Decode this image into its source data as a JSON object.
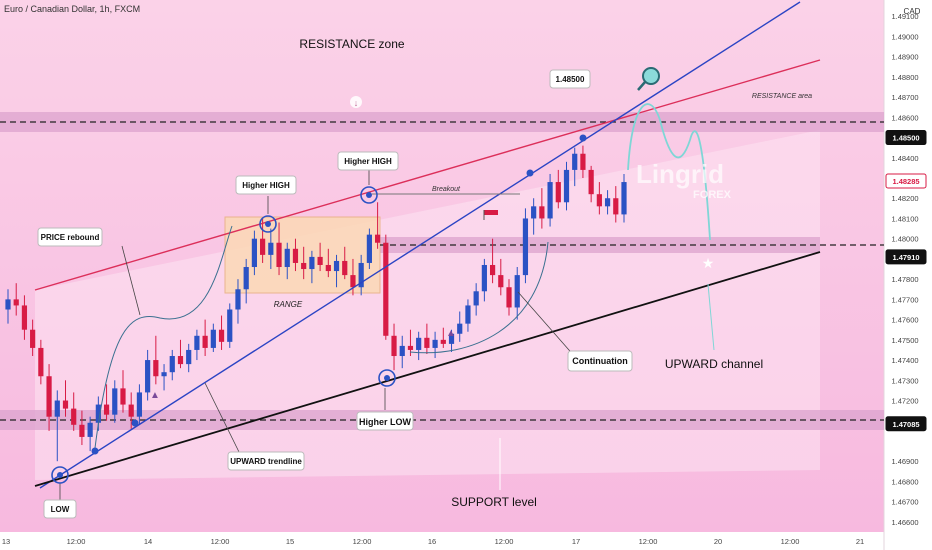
{
  "header": {
    "title": "Euro / Canadian Dollar, 1h, FXCM",
    "currency": "CAD"
  },
  "watermark": {
    "brand": "Lingrid",
    "sub": "FOREX"
  },
  "colors": {
    "background": "#f9c8e6",
    "up": "#2b52c4",
    "down": "#d81b45",
    "trendline": "#2b44c4",
    "resistance_line": "#dc2f5a",
    "support_line": "#111111",
    "band": "#dca3cd",
    "projection": "#7fd6d6"
  },
  "annotations": {
    "resistance_zone": "RESISTANCE zone",
    "resistance_area": "RESISTANCE area",
    "price_rebound": "PRICE rebound",
    "higher_high_1": "Higher HIGH",
    "higher_high_2": "Higher HIGH",
    "breakout": "Breakout",
    "range": "RANGE",
    "higher_low": "Higher LOW",
    "low": "LOW",
    "upward_trendline": "UPWARD trendline",
    "continuation": "Continuation",
    "upward_channel": "UPWARD channel",
    "support_level": "SUPPORT level",
    "target": "1.48500"
  },
  "chart_data": {
    "type": "candlestick",
    "title": "Euro / Canadian Dollar, 1h, FXCM",
    "y_axis": {
      "ticks": [
        "1.49100",
        "1.49000",
        "1.48900",
        "1.48800",
        "1.48700",
        "1.48600",
        "1.48400",
        "1.48200",
        "1.48100",
        "1.48000",
        "1.47800",
        "1.47700",
        "1.47600",
        "1.47500",
        "1.47400",
        "1.47300",
        "1.47200",
        "1.46900",
        "1.46800",
        "1.46700",
        "1.46600"
      ],
      "highlighted": [
        {
          "value": "1.48500",
          "style": "dark"
        },
        {
          "value": "1.48285",
          "style": "red"
        },
        {
          "value": "1.47910",
          "style": "dark"
        },
        {
          "value": "1.47085",
          "style": "dark"
        }
      ],
      "range": [
        1.4655,
        1.4918
      ]
    },
    "x_axis": {
      "ticks": [
        "13",
        "12:00",
        "14",
        "12:00",
        "15",
        "12:00",
        "16",
        "12:00",
        "17",
        "12:00",
        "20",
        "12:00",
        "21"
      ]
    },
    "levels": {
      "resistance": 1.485,
      "mid": 1.4791,
      "support": 1.47085,
      "current": 1.48285
    },
    "candles": [
      [
        1.4765,
        1.4775,
        1.4758,
        1.477
      ],
      [
        1.477,
        1.4778,
        1.4762,
        1.4767
      ],
      [
        1.4767,
        1.4772,
        1.475,
        1.4755
      ],
      [
        1.4755,
        1.476,
        1.4742,
        1.4746
      ],
      [
        1.4746,
        1.475,
        1.4728,
        1.4732
      ],
      [
        1.4732,
        1.4738,
        1.4705,
        1.4712
      ],
      [
        1.4712,
        1.4725,
        1.469,
        1.472
      ],
      [
        1.472,
        1.473,
        1.4712,
        1.4716
      ],
      [
        1.4716,
        1.4724,
        1.4705,
        1.4708
      ],
      [
        1.4708,
        1.4715,
        1.4698,
        1.4702
      ],
      [
        1.4702,
        1.4712,
        1.4695,
        1.4709
      ],
      [
        1.4709,
        1.4722,
        1.4705,
        1.4718
      ],
      [
        1.4718,
        1.4728,
        1.471,
        1.4713
      ],
      [
        1.4713,
        1.473,
        1.4709,
        1.4726
      ],
      [
        1.4726,
        1.4735,
        1.4714,
        1.4718
      ],
      [
        1.4718,
        1.4724,
        1.4706,
        1.4712
      ],
      [
        1.4712,
        1.4728,
        1.4708,
        1.4724
      ],
      [
        1.4724,
        1.4745,
        1.472,
        1.474
      ],
      [
        1.474,
        1.4752,
        1.4728,
        1.4732
      ],
      [
        1.4732,
        1.4738,
        1.4725,
        1.4734
      ],
      [
        1.4734,
        1.4745,
        1.473,
        1.4742
      ],
      [
        1.4742,
        1.475,
        1.4736,
        1.4738
      ],
      [
        1.4738,
        1.4748,
        1.4734,
        1.4745
      ],
      [
        1.4745,
        1.4755,
        1.474,
        1.4752
      ],
      [
        1.4752,
        1.476,
        1.4742,
        1.4746
      ],
      [
        1.4746,
        1.4758,
        1.4744,
        1.4755
      ],
      [
        1.4755,
        1.4762,
        1.4745,
        1.4749
      ],
      [
        1.4749,
        1.4768,
        1.4746,
        1.4765
      ],
      [
        1.4765,
        1.478,
        1.4758,
        1.4775
      ],
      [
        1.4775,
        1.479,
        1.4768,
        1.4786
      ],
      [
        1.4786,
        1.4804,
        1.4782,
        1.48
      ],
      [
        1.48,
        1.481,
        1.4788,
        1.4792
      ],
      [
        1.4792,
        1.4805,
        1.4785,
        1.4798
      ],
      [
        1.4798,
        1.4808,
        1.4782,
        1.4786
      ],
      [
        1.4786,
        1.4798,
        1.478,
        1.4795
      ],
      [
        1.4795,
        1.48,
        1.4784,
        1.4788
      ],
      [
        1.4788,
        1.4796,
        1.478,
        1.4785
      ],
      [
        1.4785,
        1.4794,
        1.4778,
        1.4791
      ],
      [
        1.4791,
        1.4798,
        1.4784,
        1.4787
      ],
      [
        1.4787,
        1.4795,
        1.4781,
        1.4784
      ],
      [
        1.4784,
        1.4792,
        1.4776,
        1.4789
      ],
      [
        1.4789,
        1.4796,
        1.478,
        1.4782
      ],
      [
        1.4782,
        1.479,
        1.4772,
        1.4776
      ],
      [
        1.4776,
        1.4792,
        1.4772,
        1.4788
      ],
      [
        1.4788,
        1.4805,
        1.4785,
        1.4802
      ],
      [
        1.4802,
        1.4818,
        1.4795,
        1.4798
      ],
      [
        1.4798,
        1.4802,
        1.475,
        1.4752
      ],
      [
        1.4752,
        1.4758,
        1.4735,
        1.4742
      ],
      [
        1.4742,
        1.4752,
        1.4736,
        1.4747
      ],
      [
        1.4747,
        1.4755,
        1.4742,
        1.4745
      ],
      [
        1.4745,
        1.4754,
        1.474,
        1.4751
      ],
      [
        1.4751,
        1.4758,
        1.4743,
        1.4746
      ],
      [
        1.4746,
        1.4754,
        1.4741,
        1.475
      ],
      [
        1.475,
        1.4756,
        1.4746,
        1.4748
      ],
      [
        1.4748,
        1.4755,
        1.4744,
        1.4753
      ],
      [
        1.4753,
        1.4764,
        1.4749,
        1.4758
      ],
      [
        1.4758,
        1.477,
        1.4754,
        1.4767
      ],
      [
        1.4767,
        1.4778,
        1.4762,
        1.4774
      ],
      [
        1.4774,
        1.479,
        1.4769,
        1.4787
      ],
      [
        1.4787,
        1.48,
        1.4778,
        1.4782
      ],
      [
        1.4782,
        1.479,
        1.4772,
        1.4776
      ],
      [
        1.4776,
        1.478,
        1.4762,
        1.4766
      ],
      [
        1.4766,
        1.4786,
        1.476,
        1.4782
      ],
      [
        1.4782,
        1.4815,
        1.4778,
        1.481
      ],
      [
        1.481,
        1.482,
        1.4802,
        1.4816
      ],
      [
        1.4816,
        1.4825,
        1.4805,
        1.481
      ],
      [
        1.481,
        1.4832,
        1.4806,
        1.4828
      ],
      [
        1.4828,
        1.4834,
        1.4815,
        1.4818
      ],
      [
        1.4818,
        1.4838,
        1.4814,
        1.4834
      ],
      [
        1.4834,
        1.4845,
        1.4826,
        1.4842
      ],
      [
        1.4842,
        1.4846,
        1.483,
        1.4834
      ],
      [
        1.4834,
        1.4836,
        1.4818,
        1.4822
      ],
      [
        1.4822,
        1.4828,
        1.4812,
        1.4816
      ],
      [
        1.4816,
        1.4824,
        1.4812,
        1.482
      ],
      [
        1.482,
        1.4826,
        1.4808,
        1.4812
      ],
      [
        1.4812,
        1.4832,
        1.4808,
        1.4828
      ]
    ]
  }
}
